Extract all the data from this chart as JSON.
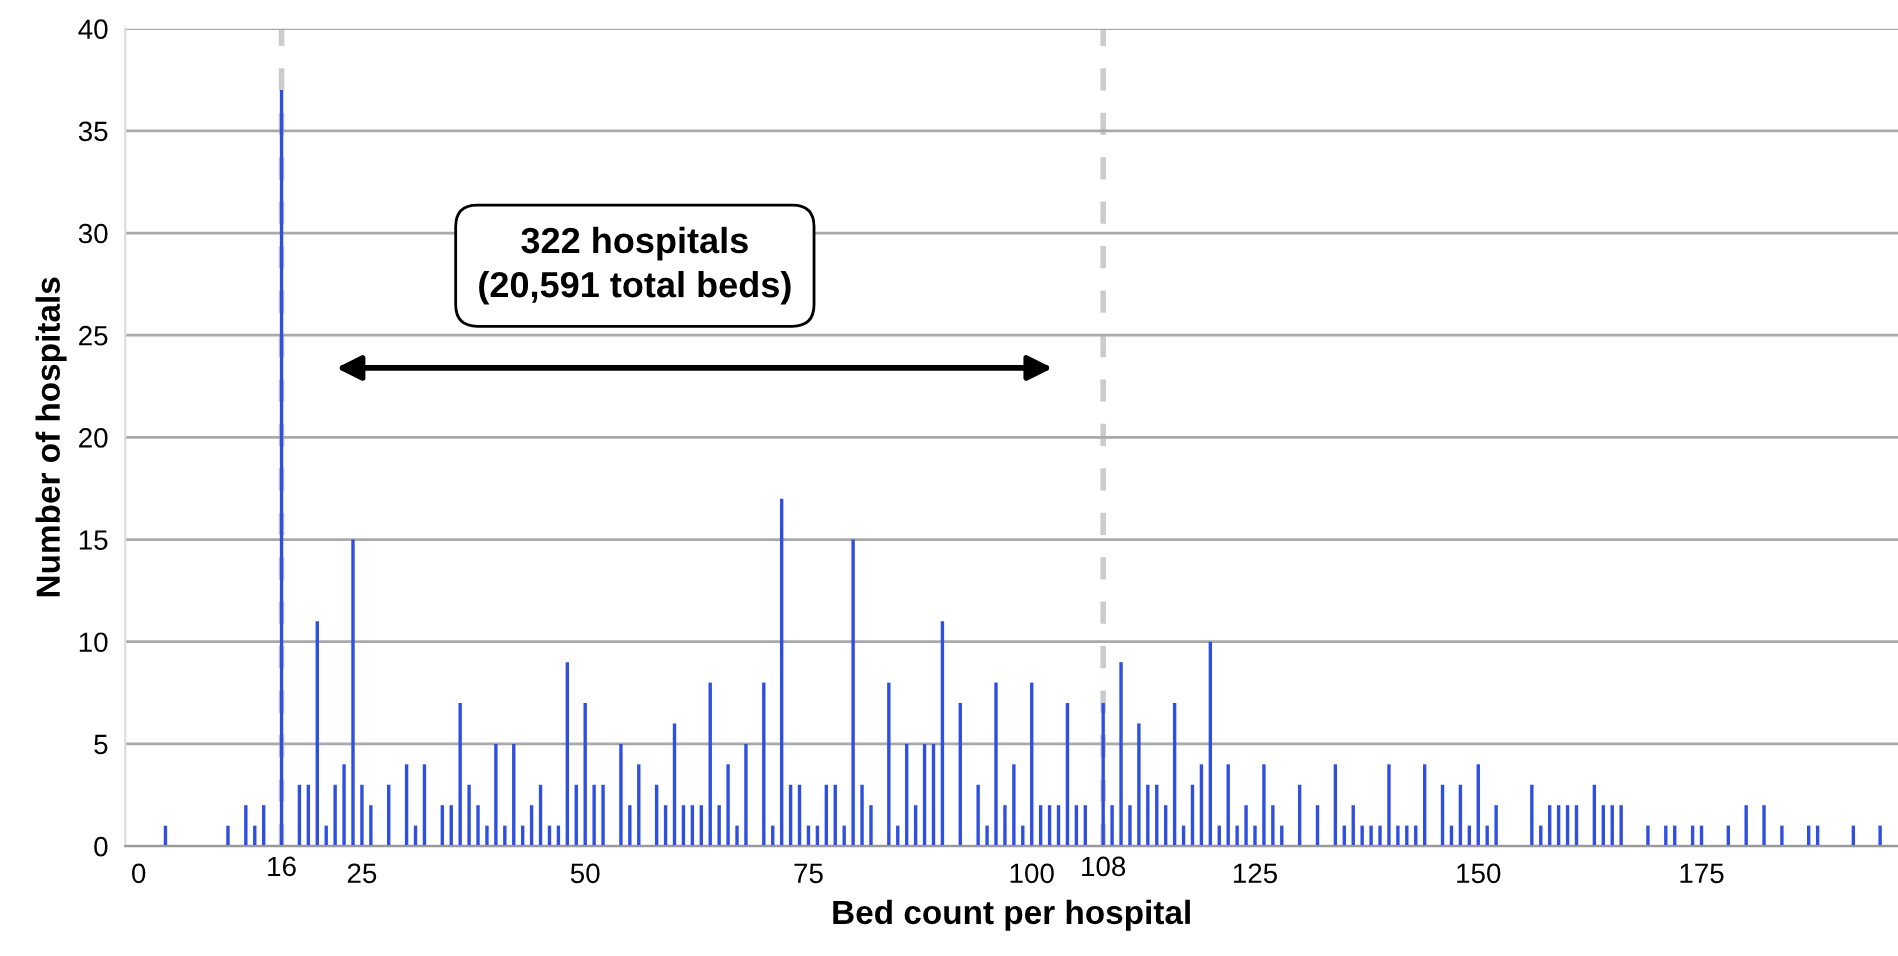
{
  "chart_data": {
    "type": "bar",
    "xlabel": "Bed count per hospital",
    "ylabel": "Number of hospitals",
    "x": [
      3,
      10,
      12,
      13,
      14,
      16,
      18,
      19,
      20,
      21,
      22,
      23,
      24,
      25,
      26,
      28,
      30,
      31,
      32,
      34,
      35,
      36,
      37,
      38,
      39,
      40,
      41,
      42,
      43,
      44,
      45,
      46,
      47,
      48,
      49,
      50,
      51,
      52,
      54,
      55,
      56,
      58,
      59,
      60,
      61,
      62,
      63,
      64,
      65,
      66,
      67,
      68,
      70,
      71,
      72,
      73,
      74,
      75,
      76,
      77,
      78,
      79,
      80,
      81,
      82,
      84,
      85,
      86,
      87,
      88,
      89,
      90,
      92,
      94,
      95,
      96,
      97,
      98,
      99,
      100,
      101,
      102,
      103,
      104,
      105,
      106,
      108,
      109,
      110,
      111,
      112,
      113,
      114,
      115,
      116,
      117,
      118,
      119,
      120,
      121,
      122,
      123,
      124,
      125,
      126,
      127,
      128,
      130,
      132,
      134,
      135,
      136,
      137,
      138,
      139,
      140,
      141,
      142,
      143,
      144,
      146,
      147,
      148,
      149,
      150,
      151,
      152,
      156,
      157,
      158,
      159,
      160,
      161,
      163,
      164,
      165,
      166,
      169,
      171,
      172,
      174,
      175,
      178,
      180,
      182,
      184,
      187,
      188,
      192,
      195
    ],
    "values": [
      1,
      1,
      2,
      1,
      2,
      37,
      3,
      3,
      11,
      1,
      3,
      4,
      15,
      3,
      2,
      3,
      4,
      1,
      4,
      2,
      2,
      7,
      3,
      2,
      1,
      5,
      1,
      5,
      1,
      2,
      3,
      1,
      1,
      9,
      3,
      7,
      3,
      3,
      5,
      2,
      4,
      3,
      2,
      6,
      2,
      2,
      2,
      8,
      2,
      4,
      1,
      5,
      8,
      1,
      17,
      3,
      3,
      1,
      1,
      3,
      3,
      1,
      15,
      3,
      2,
      8,
      1,
      5,
      2,
      5,
      5,
      11,
      7,
      3,
      1,
      8,
      2,
      4,
      1,
      8,
      2,
      2,
      2,
      7,
      2,
      2,
      7,
      2,
      9,
      2,
      6,
      3,
      3,
      2,
      7,
      1,
      3,
      4,
      10,
      1,
      4,
      1,
      2,
      1,
      4,
      2,
      1,
      3,
      2,
      4,
      1,
      2,
      1,
      1,
      1,
      4,
      1,
      1,
      1,
      4,
      3,
      1,
      3,
      1,
      4,
      1,
      2,
      3,
      1,
      2,
      2,
      2,
      2,
      3,
      2,
      2,
      2,
      1,
      1,
      1,
      1,
      1,
      1,
      2,
      2,
      1,
      1,
      1,
      1,
      1
    ],
    "color": "#2f4fe0",
    "xlim": [
      -1.5,
      197
    ],
    "xticks": [
      0,
      25,
      50,
      75,
      100,
      125,
      150,
      175
    ],
    "ylim": [
      0,
      40
    ],
    "yticks": [
      0,
      5,
      10,
      15,
      20,
      25,
      30,
      35,
      40
    ],
    "grid": "y",
    "ref_lines": [
      {
        "axis": "x",
        "value": 16,
        "label": "16",
        "color": "#cccccc",
        "line_style": "dashed"
      },
      {
        "axis": "x",
        "value": 108,
        "label": "108",
        "color": "#cccccc",
        "line_style": "dashed"
      }
    ],
    "annotations": [
      "322 hospitals\n(20,591 total beds)"
    ]
  }
}
